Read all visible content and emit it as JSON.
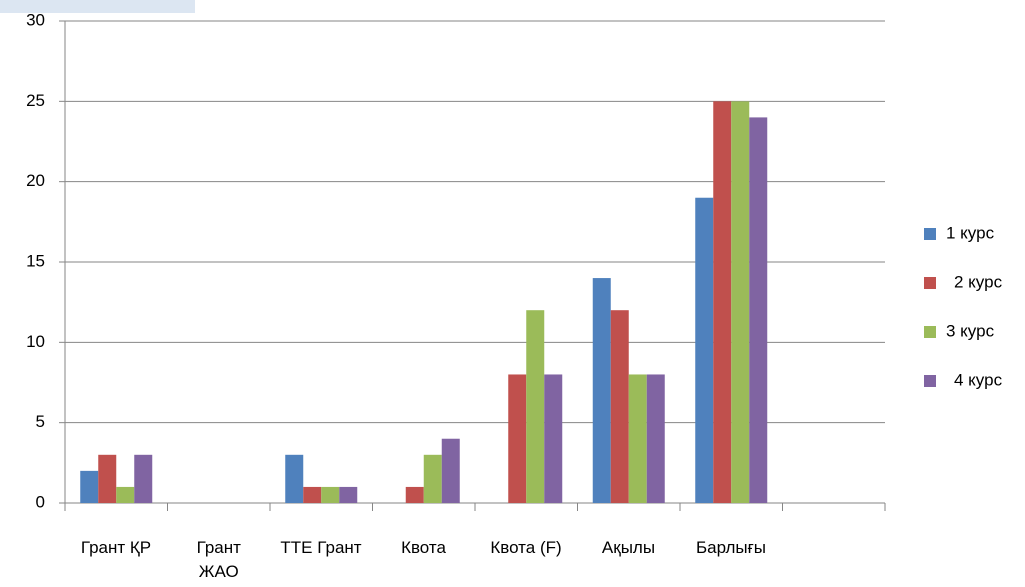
{
  "chart_data": {
    "type": "bar",
    "categories": [
      "Грант ҚР",
      "Грант ЖАО",
      "ТТЕ Грант",
      "Квота",
      "Квота (F)",
      "Ақылы",
      "Барлығы",
      null
    ],
    "series": [
      {
        "name": "1 курс",
        "color": "#4f81bd",
        "values": [
          2,
          0,
          3,
          0,
          0,
          14,
          19,
          null
        ]
      },
      {
        "name": "2 курс",
        "color": "#c0504d",
        "values": [
          3,
          0,
          1,
          1,
          8,
          12,
          25,
          null
        ]
      },
      {
        "name": "3 курс",
        "color": "#9bbb59",
        "values": [
          1,
          0,
          1,
          3,
          12,
          8,
          25,
          null
        ]
      },
      {
        "name": "4 курс",
        "color": "#8064a2",
        "values": [
          3,
          0,
          1,
          4,
          8,
          8,
          24,
          null
        ]
      }
    ],
    "ylim": [
      0,
      30
    ],
    "yticks": [
      0,
      5,
      10,
      15,
      20,
      25,
      30
    ],
    "grid": true,
    "legend": "right"
  }
}
